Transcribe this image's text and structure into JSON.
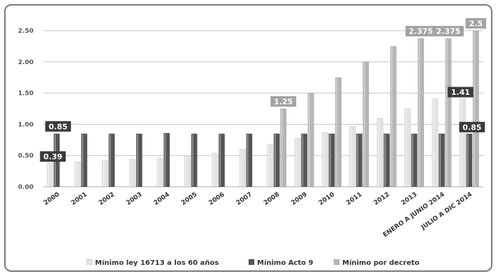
{
  "colors": {
    "ley": "#e3e3e3",
    "acto": "#555555",
    "decreto": "#b5b5b5",
    "grid": "#c4c4c4",
    "label_dark": "#3b3b3b",
    "label_light": "#a3a3a3"
  },
  "chart_data": {
    "type": "bar",
    "title": "",
    "xlabel": "",
    "ylabel": "",
    "ylim": [
      0,
      2.5
    ],
    "yticks": [
      "0.00",
      "0.50",
      "1.00",
      "1.50",
      "2.00",
      "2.50"
    ],
    "grid": true,
    "legend_position": "bottom",
    "categories": [
      "2000",
      "2001",
      "2002",
      "2003",
      "2004",
      "2005",
      "2006",
      "2007",
      "2008",
      "2009",
      "2010",
      "2011",
      "2012",
      "2013",
      "ENERO A JUNIO 2014",
      "JULIO A DIC 2014"
    ],
    "series": [
      {
        "name": "Mínimo ley 16713 a los 60 años",
        "color_key": "ley",
        "values": [
          0.39,
          0.4,
          0.42,
          0.44,
          0.46,
          0.5,
          0.54,
          0.6,
          0.68,
          0.78,
          0.87,
          0.97,
          1.1,
          1.25,
          1.41,
          1.41
        ]
      },
      {
        "name": "Mínimo Acto 9",
        "color_key": "acto",
        "values": [
          0.85,
          0.85,
          0.85,
          0.85,
          0.86,
          0.85,
          0.85,
          0.85,
          0.85,
          0.85,
          0.85,
          0.85,
          0.85,
          0.85,
          0.85,
          0.85
        ]
      },
      {
        "name": "Mínimo por decreto",
        "color_key": "decreto",
        "values": [
          null,
          null,
          null,
          null,
          null,
          null,
          null,
          null,
          1.25,
          1.5,
          1.75,
          2.0,
          2.25,
          2.375,
          2.375,
          2.5
        ]
      }
    ],
    "data_labels": [
      {
        "text": "0.39",
        "category": 0,
        "series": 0,
        "style": "dark",
        "pos": "inside"
      },
      {
        "text": "0.85",
        "category": 0,
        "series": 1,
        "style": "dark",
        "pos": "above"
      },
      {
        "text": "1.25",
        "category": 8,
        "series": 2,
        "style": "light",
        "pos": "above"
      },
      {
        "text": "2.375",
        "category": 13,
        "series": 2,
        "style": "light",
        "pos": "above"
      },
      {
        "text": "2.375",
        "category": 14,
        "series": 2,
        "style": "light",
        "pos": "above"
      },
      {
        "text": "2.5",
        "category": 15,
        "series": 2,
        "style": "light",
        "pos": "above"
      },
      {
        "text": "1.41",
        "category": 15,
        "series": 0,
        "style": "dark",
        "pos": "above"
      },
      {
        "text": "0.85",
        "category": 15,
        "series": 1,
        "style": "dark",
        "pos": "above"
      }
    ]
  }
}
